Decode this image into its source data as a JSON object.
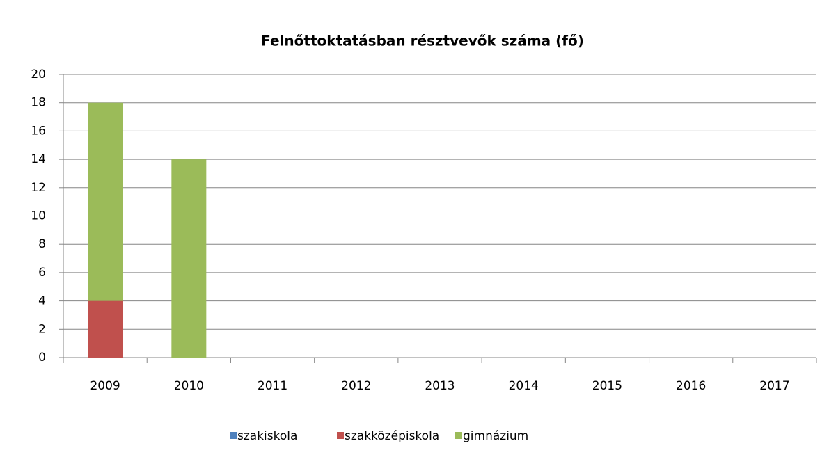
{
  "chart_data": {
    "type": "stacked_bar",
    "title": "Felnőttoktatásban résztvevők száma (fő)",
    "categories": [
      "2009",
      "2010",
      "2011",
      "2012",
      "2013",
      "2014",
      "2015",
      "2016",
      "2017"
    ],
    "series": [
      {
        "name": "szakiskola",
        "color": "#4f81bd",
        "values": [
          0,
          0,
          0,
          0,
          0,
          0,
          0,
          0,
          0
        ]
      },
      {
        "name": "szakközépiskola",
        "color": "#c0504d",
        "values": [
          4,
          0,
          0,
          0,
          0,
          0,
          0,
          0,
          0
        ]
      },
      {
        "name": "gimnázium",
        "color": "#9bbb59",
        "values": [
          14,
          14,
          0,
          0,
          0,
          0,
          0,
          0,
          0
        ]
      }
    ],
    "ylim": [
      0,
      20
    ],
    "yticks": [
      0,
      2,
      4,
      6,
      8,
      10,
      12,
      14,
      16,
      18,
      20
    ],
    "grid": true,
    "legend": "bottom"
  }
}
